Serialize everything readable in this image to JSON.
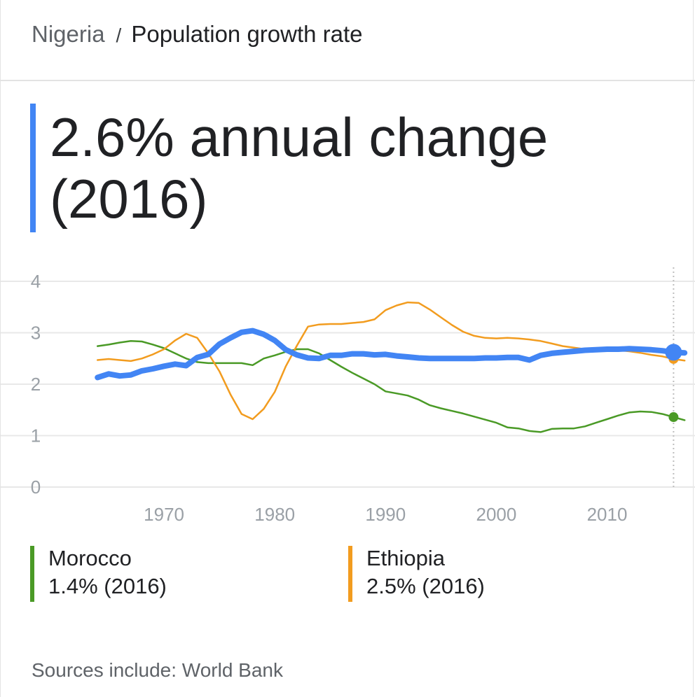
{
  "breadcrumb": {
    "country": "Nigeria",
    "separator": "/",
    "topic": "Population growth rate"
  },
  "headline": {
    "line1": "2.6% annual change",
    "line2": "(2016)"
  },
  "legend": [
    {
      "name": "Morocco",
      "value": "1.4% (2016)",
      "color": "#4a9a26"
    },
    {
      "name": "Ethiopia",
      "value": "2.5% (2016)",
      "color": "#f29c1f"
    }
  ],
  "source": "Sources include: World Bank",
  "colors": {
    "accent": "#4285f4",
    "grid": "#e8e8e8",
    "tick": "#9aa0a6"
  },
  "chart_data": {
    "type": "line",
    "xlim": [
      1960,
      2018
    ],
    "ylim": [
      0,
      4
    ],
    "x_ticks": [
      1970,
      1980,
      1990,
      2000,
      2010
    ],
    "y_ticks": [
      0,
      1,
      2,
      3,
      4
    ],
    "grid": true,
    "highlight_year": 2016,
    "series": [
      {
        "name": "Nigeria",
        "color": "#4285f4",
        "emphasis": true,
        "points": [
          [
            1964,
            2.13
          ],
          [
            1965,
            2.2
          ],
          [
            1966,
            2.16
          ],
          [
            1967,
            2.18
          ],
          [
            1968,
            2.26
          ],
          [
            1969,
            2.3
          ],
          [
            1970,
            2.35
          ],
          [
            1971,
            2.39
          ],
          [
            1972,
            2.36
          ],
          [
            1973,
            2.52
          ],
          [
            1974,
            2.58
          ],
          [
            1975,
            2.78
          ],
          [
            1976,
            2.9
          ],
          [
            1977,
            3.01
          ],
          [
            1978,
            3.04
          ],
          [
            1979,
            2.97
          ],
          [
            1980,
            2.85
          ],
          [
            1981,
            2.67
          ],
          [
            1982,
            2.57
          ],
          [
            1983,
            2.51
          ],
          [
            1984,
            2.5
          ],
          [
            1985,
            2.56
          ],
          [
            1986,
            2.56
          ],
          [
            1987,
            2.59
          ],
          [
            1988,
            2.59
          ],
          [
            1989,
            2.57
          ],
          [
            1990,
            2.58
          ],
          [
            1991,
            2.55
          ],
          [
            1992,
            2.53
          ],
          [
            1993,
            2.51
          ],
          [
            1994,
            2.5
          ],
          [
            1995,
            2.5
          ],
          [
            1996,
            2.5
          ],
          [
            1997,
            2.5
          ],
          [
            1998,
            2.5
          ],
          [
            1999,
            2.51
          ],
          [
            2000,
            2.51
          ],
          [
            2001,
            2.52
          ],
          [
            2002,
            2.52
          ],
          [
            2003,
            2.47
          ],
          [
            2004,
            2.56
          ],
          [
            2005,
            2.6
          ],
          [
            2006,
            2.62
          ],
          [
            2007,
            2.64
          ],
          [
            2008,
            2.66
          ],
          [
            2009,
            2.67
          ],
          [
            2010,
            2.68
          ],
          [
            2011,
            2.68
          ],
          [
            2012,
            2.69
          ],
          [
            2013,
            2.68
          ],
          [
            2014,
            2.67
          ],
          [
            2015,
            2.65
          ],
          [
            2016,
            2.62
          ],
          [
            2017,
            2.61
          ]
        ]
      },
      {
        "name": "Morocco",
        "color": "#4a9a26",
        "points": [
          [
            1964,
            2.74
          ],
          [
            1965,
            2.77
          ],
          [
            1966,
            2.81
          ],
          [
            1967,
            2.84
          ],
          [
            1968,
            2.83
          ],
          [
            1969,
            2.77
          ],
          [
            1970,
            2.7
          ],
          [
            1971,
            2.6
          ],
          [
            1972,
            2.5
          ],
          [
            1973,
            2.43
          ],
          [
            1974,
            2.41
          ],
          [
            1975,
            2.41
          ],
          [
            1976,
            2.41
          ],
          [
            1977,
            2.41
          ],
          [
            1978,
            2.37
          ],
          [
            1979,
            2.5
          ],
          [
            1980,
            2.56
          ],
          [
            1981,
            2.63
          ],
          [
            1982,
            2.68
          ],
          [
            1983,
            2.68
          ],
          [
            1984,
            2.6
          ],
          [
            1985,
            2.47
          ],
          [
            1986,
            2.34
          ],
          [
            1987,
            2.22
          ],
          [
            1988,
            2.11
          ],
          [
            1989,
            2.0
          ],
          [
            1990,
            1.86
          ],
          [
            1991,
            1.82
          ],
          [
            1992,
            1.78
          ],
          [
            1993,
            1.7
          ],
          [
            1994,
            1.59
          ],
          [
            1995,
            1.53
          ],
          [
            1996,
            1.48
          ],
          [
            1997,
            1.43
          ],
          [
            1998,
            1.37
          ],
          [
            1999,
            1.31
          ],
          [
            2000,
            1.25
          ],
          [
            2001,
            1.16
          ],
          [
            2002,
            1.14
          ],
          [
            2003,
            1.09
          ],
          [
            2004,
            1.07
          ],
          [
            2005,
            1.13
          ],
          [
            2006,
            1.14
          ],
          [
            2007,
            1.14
          ],
          [
            2008,
            1.18
          ],
          [
            2009,
            1.25
          ],
          [
            2010,
            1.32
          ],
          [
            2011,
            1.39
          ],
          [
            2012,
            1.45
          ],
          [
            2013,
            1.47
          ],
          [
            2014,
            1.46
          ],
          [
            2015,
            1.42
          ],
          [
            2016,
            1.36
          ],
          [
            2017,
            1.3
          ]
        ]
      },
      {
        "name": "Ethiopia",
        "color": "#f29c1f",
        "points": [
          [
            1964,
            2.47
          ],
          [
            1965,
            2.49
          ],
          [
            1966,
            2.47
          ],
          [
            1967,
            2.45
          ],
          [
            1968,
            2.5
          ],
          [
            1969,
            2.58
          ],
          [
            1970,
            2.68
          ],
          [
            1971,
            2.85
          ],
          [
            1972,
            2.98
          ],
          [
            1973,
            2.9
          ],
          [
            1974,
            2.6
          ],
          [
            1975,
            2.25
          ],
          [
            1976,
            1.8
          ],
          [
            1977,
            1.42
          ],
          [
            1978,
            1.32
          ],
          [
            1979,
            1.52
          ],
          [
            1980,
            1.85
          ],
          [
            1981,
            2.35
          ],
          [
            1982,
            2.75
          ],
          [
            1983,
            3.12
          ],
          [
            1984,
            3.16
          ],
          [
            1985,
            3.17
          ],
          [
            1986,
            3.17
          ],
          [
            1987,
            3.19
          ],
          [
            1988,
            3.21
          ],
          [
            1989,
            3.26
          ],
          [
            1990,
            3.44
          ],
          [
            1991,
            3.53
          ],
          [
            1992,
            3.59
          ],
          [
            1993,
            3.58
          ],
          [
            1994,
            3.45
          ],
          [
            1995,
            3.3
          ],
          [
            1996,
            3.15
          ],
          [
            1997,
            3.02
          ],
          [
            1998,
            2.94
          ],
          [
            1999,
            2.9
          ],
          [
            2000,
            2.89
          ],
          [
            2001,
            2.9
          ],
          [
            2002,
            2.89
          ],
          [
            2003,
            2.87
          ],
          [
            2004,
            2.84
          ],
          [
            2005,
            2.79
          ],
          [
            2006,
            2.74
          ],
          [
            2007,
            2.71
          ],
          [
            2008,
            2.68
          ],
          [
            2009,
            2.67
          ],
          [
            2010,
            2.67
          ],
          [
            2011,
            2.66
          ],
          [
            2012,
            2.64
          ],
          [
            2013,
            2.61
          ],
          [
            2014,
            2.57
          ],
          [
            2015,
            2.54
          ],
          [
            2016,
            2.49
          ],
          [
            2017,
            2.46
          ]
        ]
      }
    ]
  }
}
